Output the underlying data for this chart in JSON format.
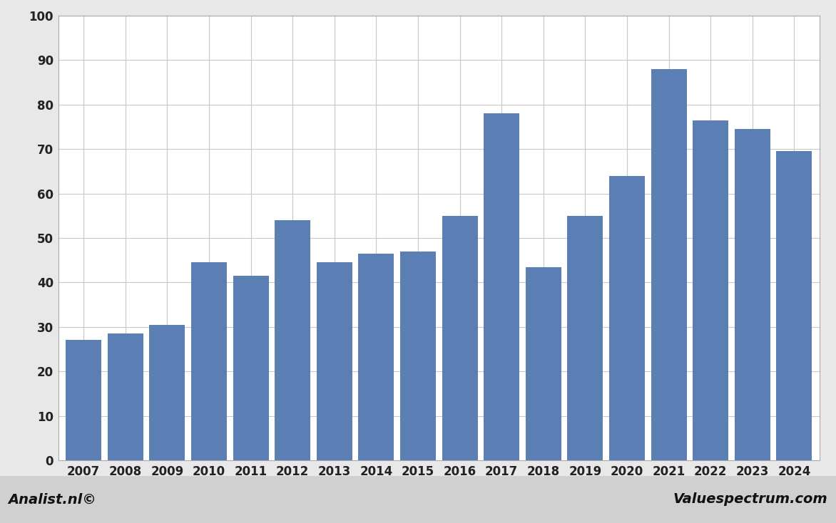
{
  "years": [
    2007,
    2008,
    2009,
    2010,
    2011,
    2012,
    2013,
    2014,
    2015,
    2016,
    2017,
    2018,
    2019,
    2020,
    2021,
    2022,
    2023,
    2024
  ],
  "values": [
    27,
    28.5,
    30.5,
    44.5,
    41.5,
    54,
    44.5,
    46.5,
    47,
    55,
    78,
    43.5,
    55,
    64,
    88,
    76.5,
    74.5,
    69.5
  ],
  "bar_color": "#5b7fb5",
  "background_color": "#e8e8e8",
  "plot_background_color": "#ffffff",
  "ylim": [
    0,
    100
  ],
  "yticks": [
    0,
    10,
    20,
    30,
    40,
    50,
    60,
    70,
    80,
    90,
    100
  ],
  "grid_color": "#c8c8c8",
  "footer_left": "Analist.nl©",
  "footer_right": "Valuespectrum.com",
  "footer_bg": "#d0d0d0"
}
